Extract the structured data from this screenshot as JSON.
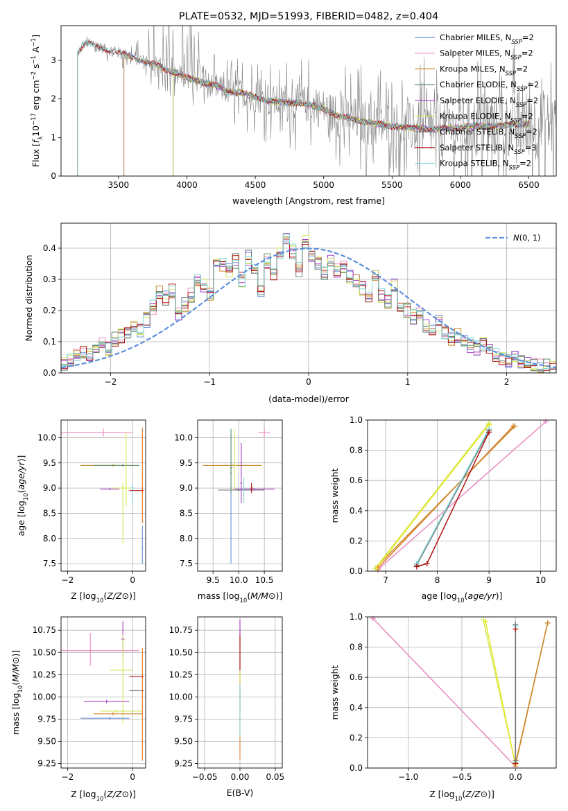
{
  "colors": {
    "Chabrier MILES": "#6b8fdc",
    "Salpeter MILES": "#e88ac0",
    "Kroupa MILES": "#c98a2a",
    "Chabrier ELODIE": "#5f8f68",
    "Salpeter ELODIE": "#a43fc9",
    "Kroupa ELODIE": "#d4e85a",
    "Chabrier STELIB": "#707070",
    "Salpeter STELIB": "#b01010",
    "Kroupa STELIB": "#7dd4d4",
    "orange": "#e0782a",
    "yellow": "#e8e82a",
    "gauss": "#5b8fdc",
    "grid": "#b0b0b0"
  },
  "chart_data": [
    {
      "id": "spectrum",
      "type": "line",
      "title": "PLATE=0532, MJD=51993, FIBERID=0482, z=0.404",
      "xlabel": "wavelength [Angstrom, rest frame]",
      "ylabel": "Flux [f_λ10^{-17} erg cm^{-2} s^{-1} A^{-1}]",
      "xlim": [
        3080,
        6700
      ],
      "ylim": [
        0,
        3.9
      ],
      "xticks": [
        3500,
        4000,
        4500,
        5000,
        5500,
        6000,
        6500
      ],
      "yticks": [
        0,
        1,
        2,
        3
      ],
      "grid": false,
      "legend_position": "top-right",
      "legend": [
        {
          "label": "Chabrier MILES, N_SSP=2",
          "color_key": "Chabrier MILES"
        },
        {
          "label": "Salpeter MILES, N_SSP=2",
          "color_key": "Salpeter MILES"
        },
        {
          "label": "Kroupa MILES, N_SSP=2",
          "color_key": "Kroupa MILES"
        },
        {
          "label": "Chabrier ELODIE, N_SSP=2",
          "color_key": "Chabrier ELODIE"
        },
        {
          "label": "Salpeter ELODIE, N_SSP=2",
          "color_key": "Salpeter ELODIE"
        },
        {
          "label": "Kroupa ELODIE, N_SSP=2",
          "color_key": "Kroupa ELODIE"
        },
        {
          "label": "Chabrier STELIB, N_SSP=2",
          "color_key": "Chabrier STELIB"
        },
        {
          "label": "Salpeter STELIB, N_SSP=3",
          "color_key": "Salpeter STELIB"
        },
        {
          "label": "Kroupa STELIB, N_SSP=2",
          "color_key": "Kroupa STELIB"
        }
      ],
      "continuum": [
        [
          3200,
          3.2
        ],
        [
          3260,
          3.45
        ],
        [
          3300,
          3.4
        ],
        [
          3400,
          3.3
        ],
        [
          3500,
          3.2
        ],
        [
          3600,
          3.1
        ],
        [
          3700,
          2.95
        ],
        [
          3800,
          2.85
        ],
        [
          3900,
          2.7
        ],
        [
          4000,
          2.55
        ],
        [
          4100,
          2.45
        ],
        [
          4200,
          2.35
        ],
        [
          4300,
          2.2
        ],
        [
          4400,
          2.15
        ],
        [
          4500,
          2.05
        ],
        [
          4600,
          1.95
        ],
        [
          4700,
          1.9
        ],
        [
          4800,
          1.9
        ],
        [
          4900,
          1.85
        ],
        [
          5000,
          1.75
        ],
        [
          5100,
          1.55
        ],
        [
          5200,
          1.5
        ],
        [
          5300,
          1.4
        ],
        [
          5400,
          1.35
        ],
        [
          5500,
          1.3
        ],
        [
          5600,
          1.25
        ],
        [
          5700,
          1.25
        ],
        [
          5800,
          1.2
        ],
        [
          5900,
          1.25
        ],
        [
          6000,
          1.25
        ],
        [
          6100,
          1.3
        ],
        [
          6200,
          1.3
        ],
        [
          6300,
          1.3
        ],
        [
          6400,
          1.35
        ],
        [
          6500,
          1.35
        ]
      ],
      "model_wavelength_ranges": {
        "MILES": [
          3540,
          6500
        ],
        "ELODIE": [
          3900,
          6500
        ],
        "STELIB": [
          3200,
          6500
        ]
      }
    },
    {
      "id": "residuals",
      "type": "line",
      "xlabel": "(data-model)/error",
      "ylabel": "Normed distribution",
      "xlim": [
        -2.5,
        2.5
      ],
      "ylim": [
        0,
        0.48
      ],
      "xticks": [
        -2,
        -1,
        0,
        1,
        2
      ],
      "yticks": [
        0.0,
        0.1,
        0.2,
        0.3,
        0.4
      ],
      "grid": true,
      "legend_position": "top-right",
      "legend": [
        {
          "label": "N(0,1)",
          "color_key": "gauss"
        }
      ],
      "bin_width": 0.1,
      "bin_start": -2.5,
      "hist_base": [
        0.03,
        0.04,
        0.06,
        0.07,
        0.06,
        0.08,
        0.09,
        0.08,
        0.11,
        0.12,
        0.13,
        0.14,
        0.14,
        0.17,
        0.21,
        0.26,
        0.24,
        0.26,
        0.19,
        0.22,
        0.25,
        0.3,
        0.28,
        0.25,
        0.34,
        0.35,
        0.33,
        0.36,
        0.3,
        0.37,
        0.34,
        0.26,
        0.36,
        0.32,
        0.39,
        0.43,
        0.39,
        0.33,
        0.42,
        0.38,
        0.35,
        0.32,
        0.36,
        0.33,
        0.34,
        0.31,
        0.29,
        0.27,
        0.24,
        0.32,
        0.25,
        0.23,
        0.28,
        0.21,
        0.2,
        0.18,
        0.19,
        0.15,
        0.14,
        0.16,
        0.13,
        0.11,
        0.12,
        0.1,
        0.09,
        0.08,
        0.09,
        0.07,
        0.06,
        0.05,
        0.04,
        0.05,
        0.04,
        0.03,
        0.03,
        0.02,
        0.02,
        0.02
      ]
    },
    {
      "id": "age-vs-Z",
      "type": "scatter",
      "xlabel": "Z [log10(Z/Z⊙)]",
      "ylabel": "age  [log10(age/yr)]",
      "xlim": [
        -2.2,
        0.4
      ],
      "ylim": [
        7.35,
        10.35
      ],
      "xticks": [
        -2,
        0
      ],
      "yticks": [
        7.5,
        8.0,
        8.5,
        9.0,
        9.5,
        10.0
      ],
      "grid": true,
      "points": [
        {
          "x": -0.9,
          "y": 10.1,
          "xerr": [
            1.3,
            0.9
          ],
          "yerr": [
            0.08,
            0.08
          ],
          "color_key": "Salpeter MILES"
        },
        {
          "x": -0.6,
          "y": 9.45,
          "xerr": [
            1.0,
            0.6
          ],
          "yerr": [
            0.03,
            0.03
          ],
          "color_key": "Kroupa MILES"
        },
        {
          "x": -0.3,
          "y": 9.45,
          "xerr": [
            0.9,
            0.5
          ],
          "yerr": [
            0.03,
            0.03
          ],
          "color_key": "Chabrier ELODIE"
        },
        {
          "x": -0.7,
          "y": 8.98,
          "xerr": [
            0.3,
            0.3
          ],
          "yerr": [
            0.02,
            0.02
          ],
          "color_key": "Salpeter ELODIE"
        },
        {
          "x": -0.3,
          "y": 9.0,
          "xerr": [
            0.3,
            0.3
          ],
          "yerr": [
            1.1,
            0.1
          ],
          "color_key": "Kroupa ELODIE"
        },
        {
          "x": -0.2,
          "y": 9.0,
          "xerr": [
            0.1,
            0.1
          ],
          "yerr": [
            0.35,
            1.1
          ],
          "color_key": "Kroupa ELODIE"
        },
        {
          "x": 0.0,
          "y": 9.0,
          "xerr": [
            0.05,
            0.05
          ],
          "yerr": [
            0.3,
            0.1
          ],
          "color_key": "Kroupa STELIB"
        },
        {
          "x": 0.3,
          "y": 8.95,
          "xerr": [
            0.4,
            0.05
          ],
          "yerr": [
            0.05,
            0.05
          ],
          "color_key": "Salpeter STELIB"
        },
        {
          "x": 0.3,
          "y": 9.2,
          "xerr": [
            0.02,
            0.02
          ],
          "yerr": [
            0.9,
            1.0
          ],
          "color_key": "orange"
        },
        {
          "x": 0.3,
          "y": 7.8,
          "xerr": [
            0.02,
            0.02
          ],
          "yerr": [
            0.3,
            0.45
          ],
          "color_key": "Chabrier MILES"
        }
      ]
    },
    {
      "id": "age-vs-mass",
      "type": "scatter",
      "xlabel": "mass [log10(M/M⊙)]",
      "ylabel": "",
      "xlim": [
        9.2,
        10.85
      ],
      "ylim": [
        7.35,
        10.35
      ],
      "xticks": [
        9.5,
        10.0,
        10.5
      ],
      "yticks": [
        7.5,
        8.0,
        8.5,
        9.0,
        9.5,
        10.0
      ],
      "grid": true,
      "points": [
        {
          "x": 10.5,
          "y": 10.1,
          "xerr": [
            0.12,
            0.12
          ],
          "yerr": [
            0.1,
            0.1
          ],
          "color_key": "Salpeter MILES"
        },
        {
          "x": 9.9,
          "y": 9.45,
          "xerr": [
            0.6,
            0.55
          ],
          "yerr": [
            0.02,
            0.02
          ],
          "color_key": "Kroupa MILES"
        },
        {
          "x": 10.3,
          "y": 8.98,
          "xerr": [
            0.4,
            0.4
          ],
          "yerr": [
            0.02,
            0.02
          ],
          "color_key": "Salpeter ELODIE"
        },
        {
          "x": 10.0,
          "y": 8.96,
          "xerr": [
            0.4,
            0.5
          ],
          "yerr": [
            0.02,
            0.02
          ],
          "color_key": "Chabrier STELIB"
        },
        {
          "x": 9.85,
          "y": 9.3,
          "xerr": [
            0.02,
            0.02
          ],
          "yerr": [
            1.8,
            0.88
          ],
          "color_key": "Chabrier MILES"
        },
        {
          "x": 9.85,
          "y": 9.4,
          "xerr": [
            0.02,
            0.02
          ],
          "yerr": [
            0.5,
            0.75
          ],
          "color_key": "Chabrier ELODIE"
        },
        {
          "x": 9.92,
          "y": 9.45,
          "xerr": [
            0.02,
            0.02
          ],
          "yerr": [
            0.5,
            0.7
          ],
          "color_key": "Kroupa ELODIE"
        },
        {
          "x": 10.05,
          "y": 9.1,
          "xerr": [
            0.02,
            0.02
          ],
          "yerr": [
            0.4,
            0.8
          ],
          "color_key": "Salpeter ELODIE"
        },
        {
          "x": 10.1,
          "y": 9.0,
          "xerr": [
            0.02,
            0.02
          ],
          "yerr": [
            0.3,
            0.2
          ],
          "color_key": "Kroupa STELIB"
        },
        {
          "x": 10.25,
          "y": 9.0,
          "xerr": [
            0.02,
            0.02
          ],
          "yerr": [
            0.1,
            0.1
          ],
          "color_key": "Salpeter STELIB"
        }
      ]
    },
    {
      "id": "massweight-vs-age",
      "type": "line",
      "xlabel": "age  [log10(age/yr)]",
      "ylabel": "mass weight",
      "xlim": [
        6.65,
        10.3
      ],
      "ylim": [
        0,
        1.0
      ],
      "xticks": [
        7,
        8,
        9,
        10
      ],
      "yticks": [
        0.0,
        0.2,
        0.4,
        0.6,
        0.8,
        1.0
      ],
      "grid": true,
      "series": [
        {
          "x": [
            6.85,
            10.1
          ],
          "y": [
            0.01,
            0.99
          ],
          "color_key": "Salpeter MILES"
        },
        {
          "x": 6.85,
          "x2": 9.47,
          "y": 0.02,
          "y2": 0.96,
          "color_key": "orange"
        },
        {
          "x": [
            6.8,
            9.5
          ],
          "y": [
            0.02,
            0.96
          ],
          "color_key": "Kroupa MILES"
        },
        {
          "x": [
            6.8,
            9.0
          ],
          "y": [
            0.02,
            0.98
          ],
          "color_key": "Kroupa ELODIE"
        },
        {
          "x": [
            6.82,
            9.0
          ],
          "y": [
            0.02,
            0.97
          ],
          "color_key": "yellow"
        },
        {
          "x": [
            7.6,
            9.0
          ],
          "y": [
            0.04,
            0.93
          ],
          "color_key": "Chabrier STELIB"
        },
        {
          "x": [
            7.6,
            9.0
          ],
          "y": [
            0.05,
            0.94
          ],
          "color_key": "Kroupa STELIB"
        },
        {
          "x": [
            7.6,
            7.8,
            9.0
          ],
          "y": [
            0.03,
            0.05,
            0.92
          ],
          "color_key": "Salpeter STELIB"
        }
      ]
    },
    {
      "id": "mass-vs-Z",
      "type": "scatter",
      "xlabel": "Z [log10(Z/Z⊙)]",
      "ylabel": "mass [log10(M/M⊙)]",
      "xlim": [
        -2.2,
        0.4
      ],
      "ylim": [
        9.2,
        10.9
      ],
      "xticks": [
        -2,
        0
      ],
      "yticks": [
        9.25,
        9.5,
        9.75,
        10.0,
        10.25,
        10.5,
        10.75
      ],
      "grid": true,
      "points": [
        {
          "x": -1.3,
          "y": 10.52,
          "xerr": [
            0.9,
            1.5
          ],
          "yerr": [
            0.17,
            0.2
          ],
          "color_key": "Salpeter MILES"
        },
        {
          "x": -0.3,
          "y": 10.65,
          "xerr": [
            0.05,
            0.05
          ],
          "yerr": [
            0.2,
            0.2
          ],
          "color_key": "Salpeter ELODIE"
        },
        {
          "x": -0.3,
          "y": 10.3,
          "xerr": [
            0.4,
            0.3
          ],
          "yerr": [
            0.6,
            0.4
          ],
          "color_key": "Kroupa ELODIE"
        },
        {
          "x": 0.3,
          "y": 10.23,
          "xerr": [
            0.4,
            0.05
          ],
          "yerr": [
            0.02,
            0.02
          ],
          "color_key": "Salpeter STELIB"
        },
        {
          "x": 0.3,
          "y": 10.07,
          "xerr": [
            0.4,
            0.05
          ],
          "yerr": [
            0.02,
            0.02
          ],
          "color_key": "Chabrier STELIB"
        },
        {
          "x": -0.8,
          "y": 9.95,
          "xerr": [
            0.7,
            0.7
          ],
          "yerr": [
            0.02,
            0.02
          ],
          "color_key": "Salpeter ELODIE"
        },
        {
          "x": -0.5,
          "y": 9.84,
          "xerr": [
            0.5,
            0.8
          ],
          "yerr": [
            0.02,
            0.02
          ],
          "color_key": "Kroupa ELODIE"
        },
        {
          "x": -0.6,
          "y": 9.81,
          "xerr": [
            0.6,
            0.9
          ],
          "yerr": [
            0.02,
            0.02
          ],
          "color_key": "Kroupa MILES"
        },
        {
          "x": -0.7,
          "y": 9.76,
          "xerr": [
            0.9,
            0.6
          ],
          "yerr": [
            0.02,
            0.02
          ],
          "color_key": "Chabrier MILES"
        },
        {
          "x": 0.3,
          "y": 9.9,
          "xerr": [
            0.02,
            0.02
          ],
          "yerr": [
            0.62,
            0.65
          ],
          "color_key": "orange"
        }
      ]
    },
    {
      "id": "mass-vs-EBV",
      "type": "scatter",
      "xlabel": "E(B-V)",
      "ylabel": "",
      "xlim": [
        -0.06,
        0.06
      ],
      "ylim": [
        9.2,
        10.9
      ],
      "xticks": [
        -0.05,
        0.0,
        0.05
      ],
      "yticks": [
        9.25,
        9.5,
        9.75,
        10.0,
        10.25,
        10.5,
        10.75
      ],
      "grid": true,
      "points": [
        {
          "x": 0.0,
          "y": 10.15,
          "xerr": [
            0,
            0
          ],
          "yerr": [
            0.85,
            0.72
          ],
          "color_key": "orange"
        },
        {
          "x": 0.0,
          "y": 10.55,
          "xerr": [
            0,
            0
          ],
          "yerr": [
            0.3,
            0.32
          ],
          "color_key": "Salpeter ELODIE"
        },
        {
          "x": 0.0,
          "y": 10.3,
          "xerr": [
            0,
            0
          ],
          "yerr": [
            0.45,
            0.4
          ],
          "color_key": "Salpeter STELIB"
        },
        {
          "x": 0.0,
          "y": 10.0,
          "xerr": [
            0,
            0
          ],
          "yerr": [
            0.3,
            0.3
          ],
          "color_key": "Kroupa ELODIE"
        },
        {
          "x": 0.0,
          "y": 9.85,
          "xerr": [
            0,
            0
          ],
          "yerr": [
            0.3,
            0.3
          ],
          "color_key": "Kroupa STELIB"
        }
      ]
    },
    {
      "id": "massweight-vs-Z",
      "type": "line",
      "xlabel": "Z [log10(Z/Z⊙)]",
      "ylabel": "mass weight",
      "xlim": [
        -1.38,
        0.38
      ],
      "ylim": [
        0,
        1.0
      ],
      "xticks": [
        -1.0,
        -0.5,
        0.0
      ],
      "yticks": [
        0.0,
        0.2,
        0.4,
        0.6,
        0.8,
        1.0
      ],
      "grid": true,
      "series": [
        {
          "x": [
            -1.33,
            0.0
          ],
          "y": [
            0.99,
            0.01
          ],
          "color_key": "Salpeter MILES"
        },
        {
          "x": [
            0.3,
            0.0
          ],
          "y": [
            0.96,
            0.02
          ],
          "color_key": "orange"
        },
        {
          "x": [
            0.3,
            0.0
          ],
          "y": [
            0.96,
            0.03
          ],
          "color_key": "Kroupa MILES"
        },
        {
          "x": [
            -0.3,
            0.0
          ],
          "y": [
            0.98,
            0.02
          ],
          "color_key": "Kroupa ELODIE"
        },
        {
          "x": [
            -0.28,
            0.0
          ],
          "y": [
            0.97,
            0.02
          ],
          "color_key": "yellow"
        },
        {
          "x": [
            0.0,
            0.0
          ],
          "y": [
            0.94,
            0.04
          ],
          "color_key": "Kroupa STELIB"
        },
        {
          "x": [
            0.0,
            0.0
          ],
          "y": [
            0.92,
            0.03
          ],
          "color_key": "Salpeter STELIB"
        },
        {
          "x": [
            0.0,
            0.0
          ],
          "y": [
            0.95,
            0.05
          ],
          "color_key": "Chabrier STELIB"
        }
      ]
    }
  ]
}
